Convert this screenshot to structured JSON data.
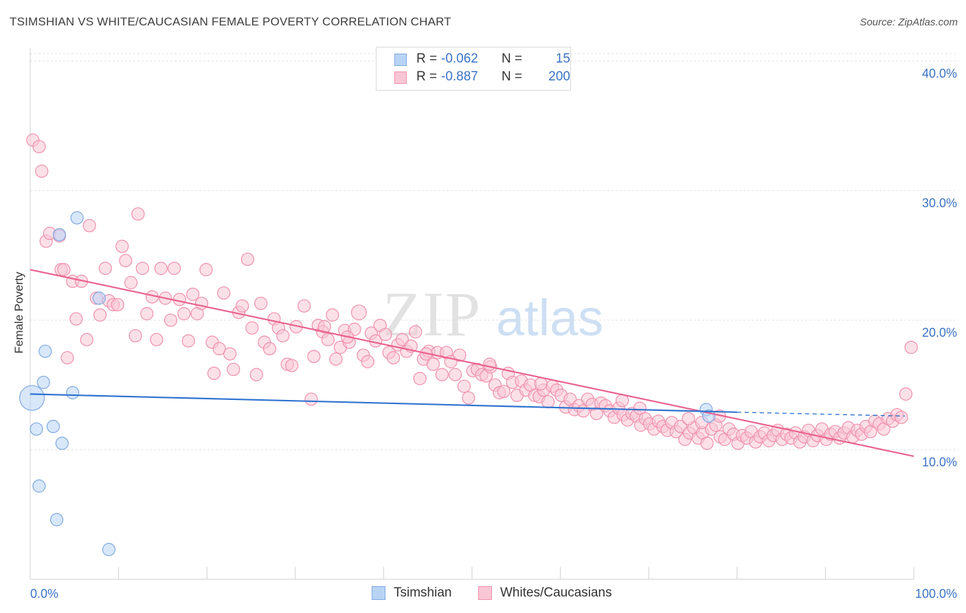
{
  "title": "TSIMSHIAN VS WHITE/CAUCASIAN FEMALE POVERTY CORRELATION CHART",
  "source": "Source: ZipAtlas.com",
  "watermark": {
    "part1": "ZIP",
    "part2": "atlas"
  },
  "colors": {
    "blue_fill": "#b8d4f5",
    "blue_stroke": "#7fa9e0",
    "blue_line": "#2e73d0",
    "pink_fill": "#f9c6d5",
    "pink_stroke": "#ef8fab",
    "pink_line": "#e8638f",
    "value_text": "#3a72c4"
  },
  "legend_top": [
    {
      "r_label": "R =",
      "r_value": "-0.062",
      "n_label": "N =",
      "n_value": "15"
    },
    {
      "r_label": "R =",
      "r_value": "-0.887",
      "n_label": "N =",
      "n_value": "200"
    }
  ],
  "legend_bottom": [
    "Tsimshian",
    "Whites/Caucasians"
  ],
  "chart_data": {
    "type": "scatter",
    "title": "TSIMSHIAN VS WHITE/CAUCASIAN FEMALE POVERTY CORRELATION CHART",
    "xlabel": "",
    "ylabel": "Female Poverty",
    "xlim": [
      0,
      100
    ],
    "ylim": [
      0,
      41
    ],
    "x_tick_labels": [
      "0.0%",
      "100.0%"
    ],
    "y_ticks": [
      10,
      20,
      30,
      40
    ],
    "y_tick_labels": [
      "10.0%",
      "20.0%",
      "30.0%",
      "40.0%"
    ],
    "grid": true,
    "series": [
      {
        "name": "Tsimshian",
        "trend": {
          "x0": 0,
          "y0": 14.3,
          "x1": 80,
          "y1": 12.9,
          "dashed_to_x": 99,
          "dashed_to_y": 12.6
        },
        "points": [
          [
            0.2,
            14.0,
            2.0
          ],
          [
            0.7,
            11.6,
            1
          ],
          [
            1.0,
            7.2,
            1
          ],
          [
            1.5,
            15.2,
            1
          ],
          [
            1.7,
            17.6,
            1
          ],
          [
            2.6,
            11.8,
            1
          ],
          [
            3.0,
            4.6,
            1
          ],
          [
            3.3,
            26.6,
            1
          ],
          [
            3.6,
            10.5,
            1
          ],
          [
            4.8,
            14.4,
            1
          ],
          [
            5.3,
            27.9,
            1
          ],
          [
            7.8,
            21.7,
            1
          ],
          [
            8.9,
            2.3,
            1
          ],
          [
            76.5,
            13.1,
            1
          ],
          [
            76.8,
            12.6,
            1
          ]
        ]
      },
      {
        "name": "Whites/Caucasians",
        "trend": {
          "x0": 0,
          "y0": 23.9,
          "x1": 100,
          "y1": 9.5
        },
        "points": [
          [
            0.3,
            33.9,
            1
          ],
          [
            1.0,
            33.4,
            1
          ],
          [
            1.3,
            31.5,
            1
          ],
          [
            1.8,
            26.1,
            1
          ],
          [
            2.2,
            26.7,
            1
          ],
          [
            3.3,
            26.5,
            1
          ],
          [
            3.5,
            23.9,
            1
          ],
          [
            3.8,
            23.9,
            1
          ],
          [
            4.2,
            17.1,
            1
          ],
          [
            4.8,
            23.0,
            1
          ],
          [
            5.2,
            20.1,
            1
          ],
          [
            5.8,
            23.0,
            1
          ],
          [
            6.4,
            18.5,
            1
          ],
          [
            6.7,
            27.3,
            1
          ],
          [
            7.5,
            21.7,
            1
          ],
          [
            7.9,
            20.4,
            1
          ],
          [
            8.5,
            24.0,
            1
          ],
          [
            8.9,
            21.5,
            1
          ],
          [
            9.4,
            21.2,
            1
          ],
          [
            9.9,
            21.2,
            1
          ],
          [
            10.4,
            25.7,
            1
          ],
          [
            10.8,
            24.6,
            1
          ],
          [
            11.4,
            22.9,
            1
          ],
          [
            11.9,
            18.8,
            1
          ],
          [
            12.2,
            28.2,
            1
          ],
          [
            12.7,
            24.0,
            1
          ],
          [
            13.2,
            20.5,
            1
          ],
          [
            13.8,
            21.8,
            1
          ],
          [
            14.3,
            18.5,
            1
          ],
          [
            14.8,
            24.0,
            1
          ],
          [
            15.3,
            21.7,
            1
          ],
          [
            15.9,
            20.0,
            1
          ],
          [
            16.3,
            24.0,
            1
          ],
          [
            16.9,
            21.6,
            1
          ],
          [
            17.4,
            20.5,
            1
          ],
          [
            17.9,
            18.4,
            1
          ],
          [
            18.4,
            22.0,
            1
          ],
          [
            18.9,
            20.5,
            1
          ],
          [
            19.4,
            21.3,
            1
          ],
          [
            19.9,
            23.9,
            1
          ],
          [
            20.6,
            18.3,
            1
          ],
          [
            20.8,
            15.9,
            1
          ],
          [
            21.4,
            17.8,
            1
          ],
          [
            21.9,
            22.1,
            1
          ],
          [
            22.6,
            17.4,
            1
          ],
          [
            23.0,
            16.2,
            1
          ],
          [
            23.6,
            20.6,
            1
          ],
          [
            24.0,
            21.1,
            1
          ],
          [
            24.6,
            24.7,
            1
          ],
          [
            25.1,
            19.4,
            1
          ],
          [
            25.6,
            15.8,
            1
          ],
          [
            26.1,
            21.3,
            1
          ],
          [
            26.5,
            18.3,
            1
          ],
          [
            27.1,
            17.8,
            1
          ],
          [
            27.6,
            20.1,
            1
          ],
          [
            28.1,
            19.4,
            1
          ],
          [
            28.6,
            18.8,
            1
          ],
          [
            29.1,
            16.6,
            1
          ],
          [
            29.6,
            16.5,
            1
          ],
          [
            30.1,
            19.5,
            1
          ],
          [
            31.0,
            21.1,
            1
          ],
          [
            31.8,
            13.9,
            1
          ],
          [
            32.1,
            17.2,
            1
          ],
          [
            32.6,
            19.6,
            1
          ],
          [
            33.1,
            19.1,
            1
          ],
          [
            33.7,
            18.5,
            1
          ],
          [
            34.2,
            20.4,
            1
          ],
          [
            34.6,
            17.0,
            1
          ],
          [
            35.1,
            17.9,
            1
          ],
          [
            35.6,
            19.2,
            1
          ],
          [
            36.1,
            18.3,
            1
          ],
          [
            36.7,
            19.3,
            1
          ],
          [
            37.2,
            20.6,
            1.2
          ],
          [
            37.7,
            17.3,
            1
          ],
          [
            38.2,
            16.8,
            1
          ],
          [
            38.6,
            19.0,
            1
          ],
          [
            39.1,
            18.4,
            1
          ],
          [
            39.6,
            19.6,
            1
          ],
          [
            40.2,
            18.9,
            1
          ],
          [
            40.6,
            17.5,
            1
          ],
          [
            41.1,
            17.1,
            1
          ],
          [
            41.6,
            18.1,
            1
          ],
          [
            42.1,
            18.5,
            1
          ],
          [
            42.6,
            17.6,
            1
          ],
          [
            43.1,
            18.0,
            1
          ],
          [
            43.6,
            19.1,
            1
          ],
          [
            44.1,
            15.5,
            1
          ],
          [
            44.5,
            17.0,
            1
          ],
          [
            45.1,
            17.6,
            1
          ],
          [
            45.6,
            16.6,
            1
          ],
          [
            46.1,
            17.5,
            1
          ],
          [
            46.6,
            15.8,
            1
          ],
          [
            47.1,
            17.5,
            1
          ],
          [
            47.6,
            16.8,
            1
          ],
          [
            48.1,
            15.8,
            1
          ],
          [
            48.6,
            17.3,
            1
          ],
          [
            49.1,
            14.9,
            1
          ],
          [
            49.6,
            14.0,
            1
          ],
          [
            50.1,
            16.1,
            1
          ],
          [
            50.6,
            16.2,
            1
          ],
          [
            51.1,
            15.8,
            1
          ],
          [
            51.6,
            15.7,
            1
          ],
          [
            52.1,
            16.4,
            1
          ],
          [
            52.6,
            15.0,
            1
          ],
          [
            53.1,
            14.4,
            1
          ],
          [
            53.6,
            14.5,
            1
          ],
          [
            54.1,
            15.9,
            1
          ],
          [
            54.6,
            15.2,
            1
          ],
          [
            55.1,
            14.2,
            1
          ],
          [
            55.6,
            15.3,
            1
          ],
          [
            56.1,
            14.6,
            1
          ],
          [
            56.6,
            15.0,
            1
          ],
          [
            57.1,
            14.2,
            1
          ],
          [
            57.6,
            14.1,
            1
          ],
          [
            58.1,
            14.6,
            1
          ],
          [
            58.6,
            13.7,
            1
          ],
          [
            59.1,
            14.9,
            1
          ],
          [
            59.6,
            14.6,
            1
          ],
          [
            60.1,
            14.2,
            1
          ],
          [
            60.6,
            13.3,
            1
          ],
          [
            61.1,
            13.9,
            1
          ],
          [
            61.6,
            13.1,
            1
          ],
          [
            62.1,
            13.4,
            1
          ],
          [
            62.6,
            13.0,
            1
          ],
          [
            63.1,
            13.9,
            1
          ],
          [
            63.6,
            13.5,
            1
          ],
          [
            64.1,
            12.8,
            1
          ],
          [
            64.6,
            13.6,
            1
          ],
          [
            65.1,
            13.4,
            1
          ],
          [
            65.6,
            13.0,
            1
          ],
          [
            66.1,
            12.5,
            1
          ],
          [
            66.6,
            13.2,
            1
          ],
          [
            67.1,
            12.7,
            1
          ],
          [
            67.6,
            12.3,
            1
          ],
          [
            68.1,
            12.8,
            1
          ],
          [
            68.6,
            12.6,
            1
          ],
          [
            69.1,
            11.9,
            1
          ],
          [
            69.6,
            12.4,
            1
          ],
          [
            70.1,
            12.0,
            1
          ],
          [
            70.6,
            11.6,
            1
          ],
          [
            71.1,
            12.2,
            1
          ],
          [
            71.6,
            11.8,
            1
          ],
          [
            72.1,
            11.5,
            1
          ],
          [
            72.6,
            12.1,
            1
          ],
          [
            73.1,
            11.4,
            1
          ],
          [
            73.6,
            11.8,
            1
          ],
          [
            74.1,
            10.8,
            1
          ],
          [
            74.6,
            11.3,
            1
          ],
          [
            75.1,
            11.7,
            1
          ],
          [
            75.6,
            10.9,
            1
          ],
          [
            76.1,
            11.3,
            1
          ],
          [
            76.6,
            10.5,
            1
          ],
          [
            77.1,
            11.6,
            1
          ],
          [
            77.6,
            11.9,
            1
          ],
          [
            78.1,
            11.0,
            1
          ],
          [
            78.6,
            10.8,
            1
          ],
          [
            79.1,
            11.6,
            1
          ],
          [
            79.6,
            11.2,
            1
          ],
          [
            80.1,
            10.5,
            1
          ],
          [
            80.6,
            11.1,
            1
          ],
          [
            81.1,
            10.9,
            1
          ],
          [
            81.6,
            11.4,
            1
          ],
          [
            82.1,
            10.6,
            1
          ],
          [
            82.6,
            11.0,
            1
          ],
          [
            83.1,
            11.3,
            1
          ],
          [
            83.6,
            10.7,
            1
          ],
          [
            84.1,
            11.1,
            1
          ],
          [
            84.6,
            11.5,
            1
          ],
          [
            85.1,
            10.8,
            1
          ],
          [
            85.6,
            11.2,
            1
          ],
          [
            86.1,
            10.9,
            1
          ],
          [
            86.6,
            11.3,
            1
          ],
          [
            87.1,
            10.6,
            1
          ],
          [
            87.6,
            11.0,
            1
          ],
          [
            88.1,
            11.5,
            1
          ],
          [
            88.6,
            10.7,
            1
          ],
          [
            89.1,
            11.1,
            1
          ],
          [
            89.6,
            11.6,
            1
          ],
          [
            90.1,
            10.8,
            1
          ],
          [
            90.6,
            11.2,
            1
          ],
          [
            91.1,
            11.4,
            1
          ],
          [
            91.6,
            10.9,
            1
          ],
          [
            92.1,
            11.3,
            1
          ],
          [
            92.6,
            11.7,
            1
          ],
          [
            93.1,
            11.0,
            1
          ],
          [
            93.6,
            11.5,
            1
          ],
          [
            94.1,
            11.2,
            1
          ],
          [
            94.6,
            11.8,
            1
          ],
          [
            95.1,
            11.4,
            1
          ],
          [
            95.6,
            12.2,
            1
          ],
          [
            96.1,
            12.0,
            1
          ],
          [
            96.6,
            11.6,
            1
          ],
          [
            97.1,
            12.4,
            1
          ],
          [
            97.6,
            12.2,
            1
          ],
          [
            98.1,
            12.7,
            1
          ],
          [
            98.6,
            12.5,
            1
          ],
          [
            99.1,
            14.3,
            1
          ],
          [
            99.7,
            17.9,
            1
          ],
          [
            76.0,
            12.1,
            1
          ],
          [
            78.0,
            12.6,
            1
          ],
          [
            52.0,
            16.6,
            1
          ],
          [
            67.0,
            13.8,
            1
          ],
          [
            44.8,
            17.4,
            1
          ],
          [
            33.3,
            19.5,
            1
          ],
          [
            35.9,
            18.7,
            1
          ],
          [
            74.5,
            12.4,
            1
          ],
          [
            69.0,
            13.2,
            1
          ],
          [
            57.8,
            15.1,
            1
          ]
        ]
      }
    ]
  }
}
